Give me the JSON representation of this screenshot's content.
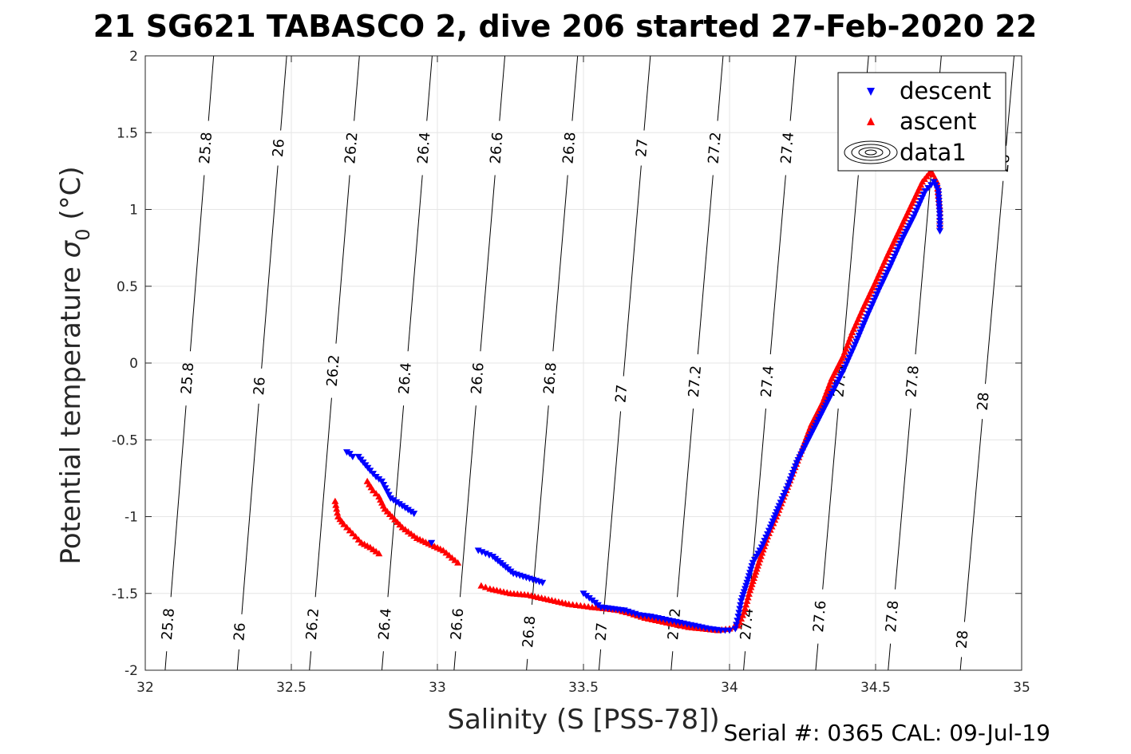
{
  "chart_data": {
    "type": "scatter",
    "title": "21 SG621 TABASCO 2, dive 206 started 27-Feb-2020 22",
    "xlabel": "Salinity (S [PSS-78])",
    "ylabel_main": "Potential temperature ",
    "ylabel_sym": "σ",
    "ylabel_sub": "0",
    "ylabel_unit": " (°C)",
    "footer": "Serial #: 0365  CAL: 09-Jul-19",
    "xlim": [
      32,
      35
    ],
    "ylim": [
      -2,
      2
    ],
    "xticks": [
      32,
      32.5,
      33,
      33.5,
      34,
      34.5,
      35
    ],
    "xtick_labels": [
      "32",
      "32.5",
      "33",
      "33.5",
      "34",
      "34.5",
      "35"
    ],
    "yticks": [
      -2,
      -1.5,
      -1,
      -0.5,
      0,
      0.5,
      1,
      1.5,
      2
    ],
    "ytick_labels": [
      "-2",
      "-1.5",
      "-1",
      "-0.5",
      "0",
      "0.5",
      "1",
      "1.5",
      "2"
    ],
    "grid": true,
    "legend_position": "top-right",
    "legend": [
      {
        "name": "descent",
        "marker": "triangle-down",
        "color": "#0000ff"
      },
      {
        "name": "ascent",
        "marker": "triangle-up",
        "color": "#ff0000"
      },
      {
        "name": "data1",
        "marker": "contour",
        "color": "#000000"
      }
    ],
    "contours": [
      {
        "level": "25.8",
        "line": [
          [
            32.068,
            -2
          ],
          [
            32.234,
            2
          ]
        ],
        "label_y": [
          1.4,
          -0.1,
          -1.7
        ]
      },
      {
        "level": "26",
        "line": [
          [
            32.315,
            -2
          ],
          [
            32.484,
            2
          ]
        ],
        "label_y": [
          1.4,
          -0.15,
          -1.75
        ]
      },
      {
        "level": "26.2",
        "line": [
          [
            32.562,
            -2
          ],
          [
            32.733,
            2
          ]
        ],
        "label_y": [
          1.4,
          -0.05,
          -1.7
        ]
      },
      {
        "level": "26.4",
        "line": [
          [
            32.81,
            -2
          ],
          [
            32.982,
            2
          ]
        ],
        "label_y": [
          1.4,
          -0.1,
          -1.7
        ]
      },
      {
        "level": "26.6",
        "line": [
          [
            33.057,
            -2
          ],
          [
            33.231,
            2
          ]
        ],
        "label_y": [
          1.4,
          -0.1,
          -1.7
        ]
      },
      {
        "level": "26.8",
        "line": [
          [
            33.305,
            -2
          ],
          [
            33.48,
            2
          ]
        ],
        "label_y": [
          1.4,
          -0.1,
          -1.75
        ]
      },
      {
        "level": "27",
        "line": [
          [
            33.553,
            -2
          ],
          [
            33.729,
            2
          ]
        ],
        "label_y": [
          1.4,
          -0.2,
          -1.75
        ]
      },
      {
        "level": "27.2",
        "line": [
          [
            33.8,
            -2
          ],
          [
            33.978,
            2
          ]
        ],
        "label_y": [
          1.4,
          -0.12,
          -1.7
        ]
      },
      {
        "level": "27.4",
        "line": [
          [
            34.048,
            -2
          ],
          [
            34.227,
            2
          ]
        ],
        "label_y": [
          1.4,
          -0.12,
          -1.7
        ]
      },
      {
        "level": "27.6",
        "line": [
          [
            34.295,
            -2
          ],
          [
            34.476,
            2
          ]
        ],
        "label_y": [
          1.4,
          -0.12,
          -1.65
        ]
      },
      {
        "level": "27.8",
        "line": [
          [
            34.543,
            -2
          ],
          [
            34.725,
            2
          ]
        ],
        "label_y": [
          1.4,
          -0.12,
          -1.65
        ]
      },
      {
        "level": "28",
        "line": [
          [
            34.79,
            -2
          ],
          [
            34.974,
            2
          ]
        ],
        "label_y": [
          1.3,
          -0.25,
          -1.8
        ]
      }
    ],
    "series": [
      {
        "name": "descent",
        "color": "#0000ff",
        "marker": "triangle-down",
        "x": [
          32.69,
          32.7,
          32.71,
          32.73,
          32.77,
          32.78,
          32.79,
          32.81,
          32.84,
          32.92,
          32.98,
          33.14,
          33.19,
          33.26,
          33.36,
          33.5,
          33.56,
          33.64,
          33.69,
          33.73,
          33.78,
          33.83,
          33.88,
          33.93,
          33.97,
          34.0,
          34.02,
          34.03,
          34.04,
          34.06,
          34.08,
          34.11,
          34.14,
          34.17,
          34.2,
          34.23,
          34.27,
          34.31,
          34.35,
          34.39,
          34.43,
          34.47,
          34.51,
          34.55,
          34.59,
          34.63,
          34.67,
          34.7,
          34.715,
          34.72,
          34.72
        ],
        "y": [
          -0.58,
          -0.59,
          -0.61,
          -0.61,
          -0.7,
          -0.72,
          -0.74,
          -0.77,
          -0.88,
          -0.98,
          -1.17,
          -1.22,
          -1.26,
          -1.37,
          -1.43,
          -1.5,
          -1.59,
          -1.61,
          -1.64,
          -1.65,
          -1.67,
          -1.69,
          -1.71,
          -1.73,
          -1.74,
          -1.74,
          -1.73,
          -1.65,
          -1.55,
          -1.43,
          -1.3,
          -1.2,
          -1.07,
          -0.93,
          -0.8,
          -0.65,
          -0.5,
          -0.35,
          -0.2,
          -0.05,
          0.12,
          0.3,
          0.47,
          0.63,
          0.8,
          0.95,
          1.12,
          1.18,
          1.12,
          0.95,
          0.86
        ]
      },
      {
        "name": "ascent",
        "color": "#ff0000",
        "marker": "triangle-up",
        "x": [
          32.65,
          32.655,
          32.66,
          32.68,
          32.71,
          32.74,
          32.77,
          32.8,
          32.76,
          32.78,
          32.8,
          32.82,
          32.88,
          32.93,
          33.02,
          33.07,
          33.15,
          33.18,
          33.25,
          33.31,
          33.38,
          33.45,
          33.49,
          33.53,
          33.58,
          33.62,
          33.66,
          33.71,
          33.76,
          33.81,
          33.86,
          33.91,
          33.96,
          34.0,
          34.03,
          34.05,
          34.07,
          34.1,
          34.13,
          34.16,
          34.19,
          34.22,
          34.25,
          34.28,
          34.32,
          34.35,
          34.39,
          34.42,
          34.46,
          34.5,
          34.54,
          34.58,
          34.62,
          34.66,
          34.69,
          34.71,
          34.72,
          34.72
        ],
        "y": [
          -0.9,
          -0.95,
          -1.0,
          -1.05,
          -1.11,
          -1.17,
          -1.2,
          -1.24,
          -0.77,
          -0.83,
          -0.87,
          -0.95,
          -1.07,
          -1.14,
          -1.22,
          -1.3,
          -1.45,
          -1.47,
          -1.5,
          -1.51,
          -1.54,
          -1.57,
          -1.58,
          -1.59,
          -1.6,
          -1.61,
          -1.63,
          -1.66,
          -1.68,
          -1.7,
          -1.72,
          -1.73,
          -1.74,
          -1.73,
          -1.71,
          -1.62,
          -1.48,
          -1.3,
          -1.13,
          -1.0,
          -0.85,
          -0.7,
          -0.55,
          -0.4,
          -0.25,
          -0.1,
          0.05,
          0.2,
          0.37,
          0.53,
          0.7,
          0.86,
          1.02,
          1.18,
          1.25,
          1.18,
          1.0,
          0.9
        ]
      }
    ]
  }
}
